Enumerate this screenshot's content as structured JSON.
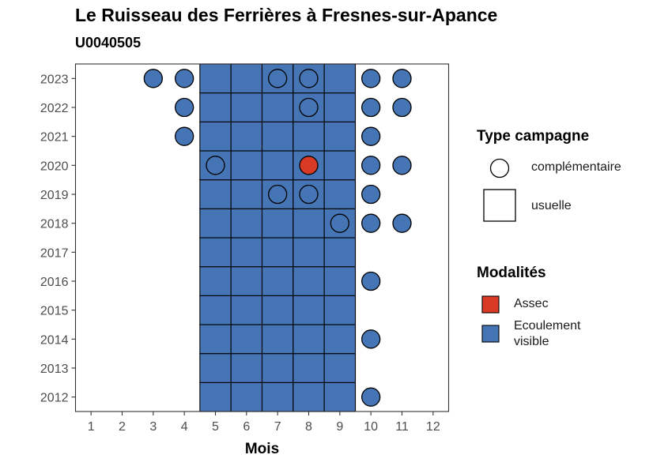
{
  "title": "Le Ruisseau des Ferrières à Fresnes-sur-Apance",
  "subtitle": "U0040505",
  "chart_data": {
    "type": "scatter",
    "xlabel": "Mois",
    "ylabel": "",
    "x_ticks": [
      "1",
      "2",
      "3",
      "4",
      "5",
      "6",
      "7",
      "8",
      "9",
      "10",
      "11",
      "12"
    ],
    "y_ticks": [
      "2012",
      "2013",
      "2014",
      "2015",
      "2016",
      "2017",
      "2018",
      "2019",
      "2020",
      "2021",
      "2022",
      "2023"
    ],
    "xlim": [
      0.5,
      12.5
    ],
    "ylim": [
      2011.5,
      2023.5
    ],
    "colors": {
      "Assec": "#d93a26",
      "Ecoulement visible": "#4575b4"
    },
    "usuelle": {
      "months": [
        5,
        6,
        7,
        8,
        9
      ],
      "years": [
        2012,
        2023
      ],
      "modalite": "Ecoulement visible"
    },
    "complementaire": [
      {
        "year": 2023,
        "month": 3,
        "modalite": "Ecoulement visible"
      },
      {
        "year": 2023,
        "month": 4,
        "modalite": "Ecoulement visible"
      },
      {
        "year": 2023,
        "month": 7,
        "modalite": "Ecoulement visible"
      },
      {
        "year": 2023,
        "month": 8,
        "modalite": "Ecoulement visible"
      },
      {
        "year": 2023,
        "month": 10,
        "modalite": "Ecoulement visible"
      },
      {
        "year": 2023,
        "month": 11,
        "modalite": "Ecoulement visible"
      },
      {
        "year": 2022,
        "month": 4,
        "modalite": "Ecoulement visible"
      },
      {
        "year": 2022,
        "month": 8,
        "modalite": "Ecoulement visible"
      },
      {
        "year": 2022,
        "month": 10,
        "modalite": "Ecoulement visible"
      },
      {
        "year": 2022,
        "month": 11,
        "modalite": "Ecoulement visible"
      },
      {
        "year": 2021,
        "month": 4,
        "modalite": "Ecoulement visible"
      },
      {
        "year": 2021,
        "month": 10,
        "modalite": "Ecoulement visible"
      },
      {
        "year": 2020,
        "month": 5,
        "modalite": "Ecoulement visible"
      },
      {
        "year": 2020,
        "month": 8,
        "modalite": "Assec"
      },
      {
        "year": 2020,
        "month": 10,
        "modalite": "Ecoulement visible"
      },
      {
        "year": 2020,
        "month": 11,
        "modalite": "Ecoulement visible"
      },
      {
        "year": 2019,
        "month": 7,
        "modalite": "Ecoulement visible"
      },
      {
        "year": 2019,
        "month": 8,
        "modalite": "Ecoulement visible"
      },
      {
        "year": 2019,
        "month": 10,
        "modalite": "Ecoulement visible"
      },
      {
        "year": 2018,
        "month": 9,
        "modalite": "Ecoulement visible"
      },
      {
        "year": 2018,
        "month": 10,
        "modalite": "Ecoulement visible"
      },
      {
        "year": 2018,
        "month": 11,
        "modalite": "Ecoulement visible"
      },
      {
        "year": 2016,
        "month": 10,
        "modalite": "Ecoulement visible"
      },
      {
        "year": 2014,
        "month": 10,
        "modalite": "Ecoulement visible"
      },
      {
        "year": 2012,
        "month": 10,
        "modalite": "Ecoulement visible"
      }
    ],
    "legend": {
      "type_title": "Type campagne",
      "type_items": [
        "complémentaire",
        "usuelle"
      ],
      "mod_title": "Modalités",
      "mod_items": [
        "Assec",
        "Ecoulement\nvisible"
      ],
      "placement": "right"
    }
  }
}
